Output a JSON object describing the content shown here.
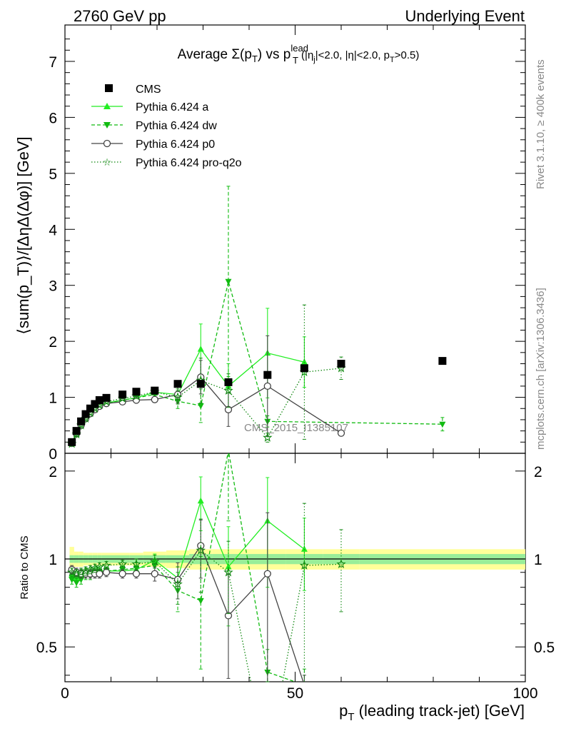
{
  "header": {
    "left": "2760 GeV pp",
    "right": "Underlying Event"
  },
  "side_labels": {
    "rivet": "Rivet 3.1.10, ≥ 400k events",
    "mcplots": "mcplots.cern.ch [arXiv:1306.3436]"
  },
  "watermark": "CMS_2015_I1385107",
  "title": {
    "prefix": "Average ",
    "sigma": "Σ(p",
    "sigma_sub": "T",
    "sigma_close": ") vs p",
    "pt_sup": "lead",
    "pt_sub": "T",
    "cuts_a": " (|η",
    "cuts_a_sub": "j",
    "cuts_b": "|<2.0, |η|<2.0, p",
    "cuts_b_sub": "T",
    "cuts_c": ">0.5)"
  },
  "axes": {
    "ylabel_main": "⟨sum(p_T)⟩/[ΔηΔ(Δφ)] [GeV]",
    "ylabel_ratio": "Ratio to CMS",
    "xlabel_main": "p",
    "xlabel_sub": "T",
    "xlabel_rest": " (leading track-jet) [GeV]"
  },
  "colors": {
    "cms": "#000000",
    "pythia_a": "#22ee22",
    "pythia_dw": "#11bb11",
    "pythia_p0": "#444444",
    "pythia_proq2o": "#118811",
    "band_outer": "#ffff99",
    "band_inner": "#99ee99"
  },
  "chart_data": {
    "type": "scatter",
    "x_range": [
      0,
      100
    ],
    "main_y_range": [
      0,
      7.65
    ],
    "ratio_y_range": [
      0.38,
      2.3
    ],
    "x_ticks": [
      0,
      50,
      100
    ],
    "main_y_ticks": [
      0,
      1,
      2,
      3,
      4,
      5,
      6,
      7
    ],
    "ratio_y_ticks": [
      0.5,
      1,
      2
    ],
    "ratio_y_scale": "log",
    "legend_position": "top-left",
    "series": [
      {
        "name": "CMS",
        "style": "square-markers",
        "points": [
          {
            "x": 1.5,
            "y": 0.2
          },
          {
            "x": 2.5,
            "y": 0.4
          },
          {
            "x": 3.5,
            "y": 0.57
          },
          {
            "x": 4.5,
            "y": 0.7
          },
          {
            "x": 5.5,
            "y": 0.8
          },
          {
            "x": 6.5,
            "y": 0.88
          },
          {
            "x": 7.5,
            "y": 0.95
          },
          {
            "x": 9.0,
            "y": 0.99
          },
          {
            "x": 12.5,
            "y": 1.05
          },
          {
            "x": 15.5,
            "y": 1.1
          },
          {
            "x": 19.5,
            "y": 1.12
          },
          {
            "x": 24.5,
            "y": 1.24
          },
          {
            "x": 29.5,
            "y": 1.24
          },
          {
            "x": 35.5,
            "y": 1.27
          },
          {
            "x": 44.0,
            "y": 1.4
          },
          {
            "x": 52.0,
            "y": 1.52
          },
          {
            "x": 60.0,
            "y": 1.6
          },
          {
            "x": 82.0,
            "y": 1.65
          }
        ]
      },
      {
        "name": "Pythia 6.424 a",
        "style": "solid-triangle-up",
        "points": [
          {
            "x": 1.5,
            "y": 0.17,
            "err": 0.02
          },
          {
            "x": 2.5,
            "y": 0.34,
            "err": 0.02
          },
          {
            "x": 3.5,
            "y": 0.5,
            "err": 0.02
          },
          {
            "x": 4.5,
            "y": 0.63,
            "err": 0.02
          },
          {
            "x": 5.5,
            "y": 0.72,
            "err": 0.02
          },
          {
            "x": 6.5,
            "y": 0.8,
            "err": 0.02
          },
          {
            "x": 7.5,
            "y": 0.86,
            "err": 0.02
          },
          {
            "x": 9.0,
            "y": 0.9,
            "err": 0.02
          },
          {
            "x": 12.5,
            "y": 0.95,
            "err": 0.03
          },
          {
            "x": 15.5,
            "y": 0.99,
            "err": 0.03
          },
          {
            "x": 19.5,
            "y": 1.09,
            "err": 0.05
          },
          {
            "x": 24.5,
            "y": 1.05,
            "err": 0.1
          },
          {
            "x": 29.5,
            "y": 1.86,
            "err": 0.45
          },
          {
            "x": 35.5,
            "y": 1.2,
            "err": 0.4
          },
          {
            "x": 44.0,
            "y": 1.79,
            "err": 0.8
          },
          {
            "x": 52.0,
            "y": 1.63,
            "err": 0.45
          }
        ]
      },
      {
        "name": "Pythia 6.424 dw",
        "style": "dashed-triangle-down",
        "points": [
          {
            "x": 1.5,
            "y": 0.17,
            "err": 0.02
          },
          {
            "x": 2.5,
            "y": 0.33,
            "err": 0.02
          },
          {
            "x": 3.5,
            "y": 0.48,
            "err": 0.02
          },
          {
            "x": 4.5,
            "y": 0.6,
            "err": 0.02
          },
          {
            "x": 5.5,
            "y": 0.7,
            "err": 0.02
          },
          {
            "x": 6.5,
            "y": 0.78,
            "err": 0.02
          },
          {
            "x": 7.5,
            "y": 0.84,
            "err": 0.02
          },
          {
            "x": 9.0,
            "y": 0.89,
            "err": 0.02
          },
          {
            "x": 12.5,
            "y": 0.95,
            "err": 0.03
          },
          {
            "x": 15.5,
            "y": 0.99,
            "err": 0.04
          },
          {
            "x": 19.5,
            "y": 1.05,
            "err": 0.05
          },
          {
            "x": 24.5,
            "y": 0.93,
            "err": 0.13
          },
          {
            "x": 29.5,
            "y": 0.85,
            "err": 0.3
          },
          {
            "x": 35.5,
            "y": 3.07,
            "err": 1.7
          },
          {
            "x": 44.0,
            "y": 0.57,
            "err": 0.1
          },
          {
            "x": 82.0,
            "y": 0.52,
            "err": 0.12
          }
        ]
      },
      {
        "name": "Pythia 6.424 p0",
        "style": "solid-open-circle",
        "points": [
          {
            "x": 1.5,
            "y": 0.18,
            "err": 0.02
          },
          {
            "x": 2.5,
            "y": 0.35,
            "err": 0.02
          },
          {
            "x": 3.5,
            "y": 0.5,
            "err": 0.02
          },
          {
            "x": 4.5,
            "y": 0.62,
            "err": 0.02
          },
          {
            "x": 5.5,
            "y": 0.71,
            "err": 0.02
          },
          {
            "x": 6.5,
            "y": 0.78,
            "err": 0.02
          },
          {
            "x": 7.5,
            "y": 0.84,
            "err": 0.02
          },
          {
            "x": 9.0,
            "y": 0.89,
            "err": 0.02
          },
          {
            "x": 12.5,
            "y": 0.92,
            "err": 0.03
          },
          {
            "x": 15.5,
            "y": 0.95,
            "err": 0.03
          },
          {
            "x": 19.5,
            "y": 0.96,
            "err": 0.05
          },
          {
            "x": 24.5,
            "y": 1.05,
            "err": 0.15
          },
          {
            "x": 29.5,
            "y": 1.36,
            "err": 0.3
          },
          {
            "x": 35.5,
            "y": 0.78,
            "err": 0.3
          },
          {
            "x": 44.0,
            "y": 1.2,
            "err": 0.9
          },
          {
            "x": 60.0,
            "y": 0.36,
            "err": 0.03
          }
        ]
      },
      {
        "name": "Pythia 6.424 pro-q2o",
        "style": "dotted-star",
        "points": [
          {
            "x": 1.5,
            "y": 0.17,
            "err": 0.02
          },
          {
            "x": 2.5,
            "y": 0.34,
            "err": 0.02
          },
          {
            "x": 3.5,
            "y": 0.5,
            "err": 0.02
          },
          {
            "x": 4.5,
            "y": 0.62,
            "err": 0.02
          },
          {
            "x": 5.5,
            "y": 0.72,
            "err": 0.02
          },
          {
            "x": 6.5,
            "y": 0.8,
            "err": 0.02
          },
          {
            "x": 7.5,
            "y": 0.86,
            "err": 0.02
          },
          {
            "x": 9.0,
            "y": 0.92,
            "err": 0.02
          },
          {
            "x": 12.5,
            "y": 0.98,
            "err": 0.03
          },
          {
            "x": 15.5,
            "y": 1.02,
            "err": 0.04
          },
          {
            "x": 19.5,
            "y": 1.1,
            "err": 0.05
          },
          {
            "x": 24.5,
            "y": 1.0,
            "err": 0.12
          },
          {
            "x": 29.5,
            "y": 1.3,
            "err": 0.4
          },
          {
            "x": 35.5,
            "y": 1.12,
            "err": 0.3
          },
          {
            "x": 44.0,
            "y": 0.28,
            "err": 0.08
          },
          {
            "x": 52.0,
            "y": 1.45,
            "err": 1.2
          },
          {
            "x": 60.0,
            "y": 1.52,
            "err": 0.2
          }
        ]
      }
    ],
    "ratio_series": [
      {
        "name": "Pythia 6.424 a",
        "points": [
          {
            "x": 1.5,
            "y": 0.88,
            "err": 0.03
          },
          {
            "x": 2.5,
            "y": 0.86,
            "err": 0.03
          },
          {
            "x": 3.5,
            "y": 0.88,
            "err": 0.03
          },
          {
            "x": 4.5,
            "y": 0.9,
            "err": 0.03
          },
          {
            "x": 5.5,
            "y": 0.9,
            "err": 0.03
          },
          {
            "x": 6.5,
            "y": 0.91,
            "err": 0.03
          },
          {
            "x": 7.5,
            "y": 0.91,
            "err": 0.03
          },
          {
            "x": 9.0,
            "y": 0.91,
            "err": 0.03
          },
          {
            "x": 12.5,
            "y": 0.91,
            "err": 0.03
          },
          {
            "x": 15.5,
            "y": 0.92,
            "err": 0.03
          },
          {
            "x": 19.5,
            "y": 0.99,
            "err": 0.05
          },
          {
            "x": 24.5,
            "y": 0.86,
            "err": 0.08
          },
          {
            "x": 29.5,
            "y": 1.58,
            "err": 0.33
          },
          {
            "x": 35.5,
            "y": 0.94,
            "err": 0.35
          },
          {
            "x": 44.0,
            "y": 1.35,
            "err": 0.55
          },
          {
            "x": 52.0,
            "y": 1.08,
            "err": 0.3
          }
        ]
      },
      {
        "name": "Pythia 6.424 dw",
        "points": [
          {
            "x": 1.5,
            "y": 0.85,
            "err": 0.03
          },
          {
            "x": 2.5,
            "y": 0.83,
            "err": 0.03
          },
          {
            "x": 3.5,
            "y": 0.85,
            "err": 0.03
          },
          {
            "x": 4.5,
            "y": 0.88,
            "err": 0.03
          },
          {
            "x": 5.5,
            "y": 0.88,
            "err": 0.03
          },
          {
            "x": 6.5,
            "y": 0.9,
            "err": 0.03
          },
          {
            "x": 7.5,
            "y": 0.9,
            "err": 0.03
          },
          {
            "x": 9.0,
            "y": 0.91,
            "err": 0.03
          },
          {
            "x": 12.5,
            "y": 0.92,
            "err": 0.03
          },
          {
            "x": 15.5,
            "y": 0.93,
            "err": 0.04
          },
          {
            "x": 19.5,
            "y": 0.95,
            "err": 0.05
          },
          {
            "x": 24.5,
            "y": 0.78,
            "err": 0.12
          },
          {
            "x": 29.5,
            "y": 0.72,
            "err": 0.3
          },
          {
            "x": 35.5,
            "y": 2.35,
            "err": 1.0
          },
          {
            "x": 44.0,
            "y": 0.41,
            "err": 0.08
          },
          {
            "x": 52.0,
            "y": 0.37,
            "err": 0.05
          }
        ]
      },
      {
        "name": "Pythia 6.424 p0",
        "points": [
          {
            "x": 1.5,
            "y": 0.92,
            "err": 0.03
          },
          {
            "x": 2.5,
            "y": 0.9,
            "err": 0.03
          },
          {
            "x": 3.5,
            "y": 0.89,
            "err": 0.03
          },
          {
            "x": 4.5,
            "y": 0.89,
            "err": 0.03
          },
          {
            "x": 5.5,
            "y": 0.89,
            "err": 0.03
          },
          {
            "x": 6.5,
            "y": 0.89,
            "err": 0.03
          },
          {
            "x": 7.5,
            "y": 0.89,
            "err": 0.03
          },
          {
            "x": 9.0,
            "y": 0.9,
            "err": 0.03
          },
          {
            "x": 12.5,
            "y": 0.89,
            "err": 0.03
          },
          {
            "x": 15.5,
            "y": 0.89,
            "err": 0.03
          },
          {
            "x": 19.5,
            "y": 0.89,
            "err": 0.05
          },
          {
            "x": 24.5,
            "y": 0.85,
            "err": 0.12
          },
          {
            "x": 29.5,
            "y": 1.11,
            "err": 0.25
          },
          {
            "x": 35.5,
            "y": 0.64,
            "err": 0.25
          },
          {
            "x": 44.0,
            "y": 0.89,
            "err": 0.55
          },
          {
            "x": 52.0,
            "y": 0.37,
            "err": 0.03
          }
        ]
      },
      {
        "name": "Pythia 6.424 pro-q2o",
        "points": [
          {
            "x": 1.5,
            "y": 0.9,
            "err": 0.03
          },
          {
            "x": 2.5,
            "y": 0.89,
            "err": 0.03
          },
          {
            "x": 3.5,
            "y": 0.9,
            "err": 0.03
          },
          {
            "x": 4.5,
            "y": 0.91,
            "err": 0.03
          },
          {
            "x": 5.5,
            "y": 0.92,
            "err": 0.03
          },
          {
            "x": 6.5,
            "y": 0.93,
            "err": 0.03
          },
          {
            "x": 7.5,
            "y": 0.94,
            "err": 0.03
          },
          {
            "x": 9.0,
            "y": 0.95,
            "err": 0.03
          },
          {
            "x": 12.5,
            "y": 0.96,
            "err": 0.03
          },
          {
            "x": 15.5,
            "y": 0.96,
            "err": 0.04
          },
          {
            "x": 19.5,
            "y": 0.98,
            "err": 0.05
          },
          {
            "x": 24.5,
            "y": 0.82,
            "err": 0.12
          },
          {
            "x": 29.5,
            "y": 1.07,
            "err": 0.3
          },
          {
            "x": 35.5,
            "y": 0.9,
            "err": 0.25
          },
          {
            "x": 44.0,
            "y": 0.2,
            "err": 0.05
          },
          {
            "x": 52.0,
            "y": 0.95,
            "err": 0.6
          },
          {
            "x": 60.0,
            "y": 0.96,
            "err": 0.3
          }
        ]
      }
    ],
    "cms_bands": {
      "edges": [
        1,
        2,
        3,
        4,
        5,
        6,
        7,
        8,
        10,
        14,
        17,
        22,
        27,
        32,
        40,
        48,
        56,
        64,
        100
      ],
      "outer": [
        0.1,
        0.06,
        0.06,
        0.05,
        0.05,
        0.05,
        0.05,
        0.05,
        0.05,
        0.05,
        0.06,
        0.07,
        0.08,
        0.08,
        0.08,
        0.08,
        0.08,
        0.08
      ],
      "inner": [
        0.03,
        0.03,
        0.03,
        0.03,
        0.03,
        0.03,
        0.03,
        0.03,
        0.03,
        0.03,
        0.03,
        0.03,
        0.04,
        0.04,
        0.04,
        0.04,
        0.04,
        0.04
      ]
    }
  }
}
